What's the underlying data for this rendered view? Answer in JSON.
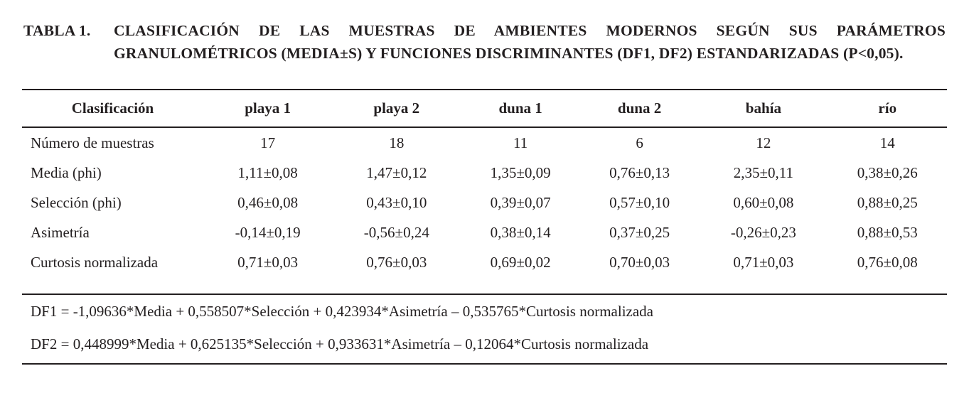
{
  "title": {
    "label": "TABLA 1.",
    "text": "CLASIFICACIÓN DE LAS MUESTRAS DE AMBIENTES MODERNOS SEGÚN SUS PARÁMETROS GRANULOMÉTRICOS (MEDIA±S) Y FUNCIONES DISCRIMINANTES (DF1, DF2) ESTANDARIZADAS (P<0,05)."
  },
  "table": {
    "headers": [
      "Clasificación",
      "playa 1",
      "playa 2",
      "duna 1",
      "duna 2",
      "bahía",
      "río"
    ],
    "rows": [
      {
        "label": "Número de muestras",
        "values": [
          "17",
          "18",
          "11",
          "6",
          "12",
          "14"
        ]
      },
      {
        "label": "Media (phi)",
        "values": [
          "1,11±0,08",
          "1,47±0,12",
          "1,35±0,09",
          "0,76±0,13",
          "2,35±0,11",
          "0,38±0,26"
        ]
      },
      {
        "label": "Selección (phi)",
        "values": [
          "0,46±0,08",
          "0,43±0,10",
          "0,39±0,07",
          "0,57±0,10",
          "0,60±0,08",
          "0,88±0,25"
        ]
      },
      {
        "label": "Asimetría",
        "values": [
          "-0,14±0,19",
          "-0,56±0,24",
          "0,38±0,14",
          "0,37±0,25",
          "-0,26±0,23",
          "0,88±0,53"
        ]
      },
      {
        "label": "Curtosis normalizada",
        "values": [
          "0,71±0,03",
          "0,76±0,03",
          "0,69±0,02",
          "0,70±0,03",
          "0,71±0,03",
          "0,76±0,08"
        ]
      }
    ],
    "footnotes": [
      "DF1 = -1,09636*Media + 0,558507*Selección + 0,423934*Asimetría – 0,535765*Curtosis normalizada",
      "DF2 = 0,448999*Media + 0,625135*Selección + 0,933631*Asimetría – 0,12064*Curtosis normalizada"
    ]
  },
  "colors": {
    "text": "#231f20",
    "background": "#ffffff",
    "rule": "#231f20"
  }
}
